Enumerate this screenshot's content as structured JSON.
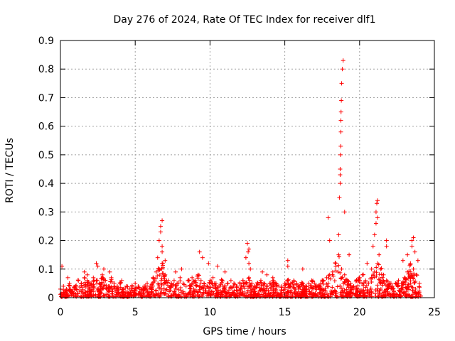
{
  "chart_data": {
    "type": "scatter",
    "title": "Day 276 of 2024, Rate Of TEC Index for receiver dlf1",
    "xlabel": "GPS time / hours",
    "ylabel": "ROTI / TECUs",
    "xlim": [
      0,
      25
    ],
    "ylim": [
      0,
      0.9
    ],
    "xticks": [
      0,
      5,
      10,
      15,
      20,
      25
    ],
    "xtick_labels": [
      "0",
      "5",
      "10",
      "15",
      "20",
      "25"
    ],
    "yticks": [
      0,
      0.1,
      0.2,
      0.3,
      0.4,
      0.5,
      0.6,
      0.7,
      0.8,
      0.9
    ],
    "ytick_labels": [
      "0",
      "0.1",
      "0.2",
      "0.3",
      "0.4",
      "0.5",
      "0.6",
      "0.7",
      "0.8",
      "0.9"
    ],
    "grid": true,
    "marker": "+",
    "marker_color": "#ff0000",
    "series": [
      {
        "name": "ROTI",
        "x": [
          0.0,
          0.2,
          0.4,
          0.6,
          0.8,
          1.0,
          1.2,
          1.4,
          1.6,
          1.8,
          2.0,
          2.2,
          2.4,
          2.6,
          2.8,
          3.0,
          3.2,
          3.4,
          3.6,
          3.8,
          4.0,
          4.2,
          4.4,
          4.6,
          4.8,
          5.0,
          5.2,
          5.4,
          5.6,
          5.8,
          6.0,
          6.2,
          6.4,
          6.6,
          6.8,
          7.0,
          7.2,
          7.4,
          7.6,
          7.8,
          8.0,
          8.2,
          8.4,
          8.6,
          8.8,
          9.0,
          9.2,
          9.4,
          9.6,
          9.8,
          10.0,
          10.2,
          10.4,
          10.6,
          10.8,
          11.0,
          11.2,
          11.4,
          11.6,
          11.8,
          12.0,
          12.2,
          12.4,
          12.6,
          12.8,
          13.0,
          13.2,
          13.4,
          13.6,
          13.8,
          14.0,
          14.2,
          14.4,
          14.6,
          14.8,
          15.0,
          15.2,
          15.4,
          15.6,
          15.8,
          16.0,
          16.2,
          16.4,
          16.6,
          16.8,
          17.0,
          17.2,
          17.4,
          17.6,
          17.8,
          18.0,
          18.2,
          18.4,
          18.6,
          18.8,
          19.0,
          19.2,
          19.4,
          19.6,
          19.8,
          20.0,
          20.2,
          20.4,
          20.6,
          20.8,
          21.0,
          21.2,
          21.4,
          21.6,
          21.8,
          22.0,
          22.2,
          22.4,
          22.6,
          22.8,
          23.0,
          23.2,
          23.4,
          23.6,
          23.8,
          24.0,
          0.1,
          0.5,
          1.6,
          1.8,
          2.4,
          2.5,
          2.9,
          3.3,
          4.1,
          5.0,
          6.5,
          6.6,
          6.7,
          6.7,
          6.8,
          6.8,
          6.8,
          6.85,
          7.0,
          7.7,
          8.1,
          9.3,
          9.5,
          9.9,
          10.5,
          11.0,
          12.4,
          12.5,
          12.55,
          12.6,
          12.6,
          12.7,
          13.5,
          13.8,
          14.2,
          15.2,
          15.2,
          16.2,
          17.9,
          18.0,
          18.6,
          18.65,
          18.7,
          18.7,
          18.7,
          18.72,
          18.74,
          18.75,
          18.75,
          18.76,
          18.78,
          18.8,
          18.85,
          18.9,
          19.0,
          19.3,
          20.5,
          20.8,
          20.9,
          21.0,
          21.1,
          21.1,
          21.15,
          21.2,
          21.2,
          21.3,
          21.8,
          21.8,
          22.9,
          23.2,
          23.5,
          23.5,
          23.6,
          23.7,
          23.9
        ],
        "y": [
          0.03,
          0.04,
          0.03,
          0.05,
          0.02,
          0.04,
          0.06,
          0.05,
          0.07,
          0.06,
          0.05,
          0.07,
          0.06,
          0.05,
          0.08,
          0.06,
          0.04,
          0.07,
          0.05,
          0.04,
          0.05,
          0.03,
          0.04,
          0.03,
          0.04,
          0.03,
          0.04,
          0.03,
          0.04,
          0.05,
          0.04,
          0.07,
          0.09,
          0.1,
          0.12,
          0.08,
          0.06,
          0.05,
          0.06,
          0.05,
          0.07,
          0.05,
          0.04,
          0.06,
          0.07,
          0.06,
          0.08,
          0.06,
          0.05,
          0.04,
          0.06,
          0.07,
          0.05,
          0.04,
          0.06,
          0.04,
          0.05,
          0.06,
          0.05,
          0.04,
          0.05,
          0.06,
          0.05,
          0.07,
          0.05,
          0.04,
          0.05,
          0.06,
          0.05,
          0.04,
          0.05,
          0.06,
          0.05,
          0.04,
          0.04,
          0.05,
          0.06,
          0.05,
          0.06,
          0.05,
          0.04,
          0.05,
          0.04,
          0.05,
          0.06,
          0.05,
          0.04,
          0.05,
          0.06,
          0.07,
          0.08,
          0.09,
          0.12,
          0.15,
          0.1,
          0.08,
          0.06,
          0.05,
          0.04,
          0.06,
          0.07,
          0.08,
          0.06,
          0.05,
          0.07,
          0.09,
          0.12,
          0.1,
          0.08,
          0.06,
          0.05,
          0.04,
          0.05,
          0.06,
          0.05,
          0.07,
          0.09,
          0.12,
          0.1,
          0.08,
          0.05,
          0.11,
          0.07,
          0.09,
          0.08,
          0.12,
          0.11,
          0.1,
          0.09,
          0.06,
          0.05,
          0.14,
          0.2,
          0.25,
          0.23,
          0.27,
          0.16,
          0.18,
          0.12,
          0.13,
          0.09,
          0.1,
          0.16,
          0.14,
          0.12,
          0.11,
          0.09,
          0.14,
          0.19,
          0.16,
          0.12,
          0.17,
          0.1,
          0.09,
          0.08,
          0.07,
          0.13,
          0.11,
          0.1,
          0.28,
          0.2,
          0.22,
          0.35,
          0.43,
          0.4,
          0.45,
          0.5,
          0.53,
          0.58,
          0.62,
          0.65,
          0.69,
          0.75,
          0.8,
          0.83,
          0.3,
          0.15,
          0.12,
          0.1,
          0.18,
          0.22,
          0.26,
          0.3,
          0.33,
          0.28,
          0.34,
          0.15,
          0.2,
          0.18,
          0.13,
          0.15,
          0.2,
          0.18,
          0.21,
          0.16,
          0.13
        ]
      }
    ]
  }
}
